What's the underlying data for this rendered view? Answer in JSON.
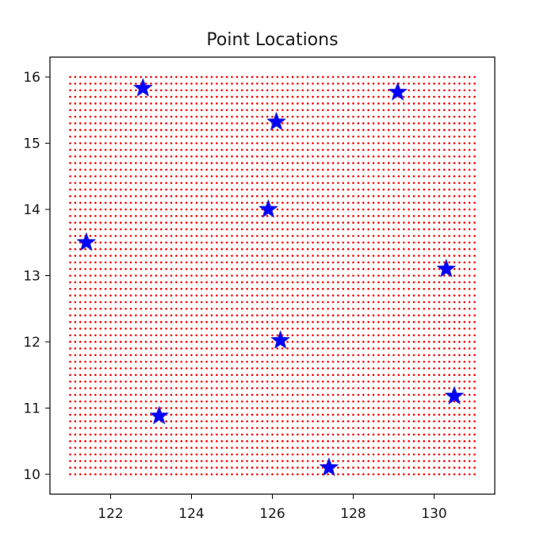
{
  "chart_data": {
    "type": "scatter",
    "title": "Point Locations",
    "xlabel": "",
    "ylabel": "",
    "xlim": [
      120.5,
      131.5
    ],
    "ylim": [
      9.7,
      16.3
    ],
    "x_ticks": [
      122,
      124,
      126,
      128,
      130
    ],
    "y_ticks": [
      10,
      11,
      12,
      13,
      14,
      15,
      16
    ],
    "grid": false,
    "legend": "none",
    "grid_points": {
      "marker": "dot",
      "color": "#ff0000",
      "x_range": [
        121,
        131
      ],
      "y_range": [
        10,
        16
      ],
      "x_count": 81,
      "y_count": 61
    },
    "stars": {
      "marker": "star",
      "fill": "#0000ff",
      "edge": "#3333cc",
      "points": [
        {
          "x": 121.4,
          "y": 13.5
        },
        {
          "x": 122.8,
          "y": 15.83
        },
        {
          "x": 123.2,
          "y": 10.88
        },
        {
          "x": 125.9,
          "y": 14.0
        },
        {
          "x": 126.1,
          "y": 15.32
        },
        {
          "x": 126.2,
          "y": 12.02
        },
        {
          "x": 127.4,
          "y": 10.1
        },
        {
          "x": 129.1,
          "y": 15.77
        },
        {
          "x": 130.3,
          "y": 13.1
        },
        {
          "x": 130.5,
          "y": 11.18
        }
      ]
    }
  }
}
